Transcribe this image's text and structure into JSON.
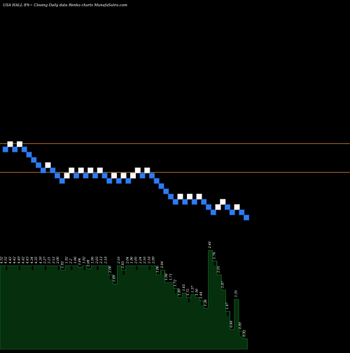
{
  "header": {
    "text": "USA HALL  8%~  Closing Daily data  Renko  charts MunafaSutra.com"
  },
  "colors": {
    "background": "#000000",
    "up_brick": "#ffffff",
    "down_brick": "#2f7cf0",
    "down_brick_border": "#1a4fb8",
    "ref_line": "#a0671d",
    "volume_fill": "#062f0e",
    "volume_line": "#127a2b",
    "volume_tick": "#000000",
    "label": "#ffffff"
  },
  "chart_data": {
    "type": "renko",
    "bricks": [
      {
        "dir": "down",
        "level": 0
      },
      {
        "dir": "up",
        "level": 1
      },
      {
        "dir": "down",
        "level": 0
      },
      {
        "dir": "up",
        "level": 1
      },
      {
        "dir": "down",
        "level": 0
      },
      {
        "dir": "down",
        "level": -1
      },
      {
        "dir": "down",
        "level": -2
      },
      {
        "dir": "down",
        "level": -3
      },
      {
        "dir": "down",
        "level": -4
      },
      {
        "dir": "up",
        "level": -3
      },
      {
        "dir": "down",
        "level": -4
      },
      {
        "dir": "down",
        "level": -5
      },
      {
        "dir": "down",
        "level": -6
      },
      {
        "dir": "up",
        "level": -5
      },
      {
        "dir": "up",
        "level": -4
      },
      {
        "dir": "down",
        "level": -5
      },
      {
        "dir": "up",
        "level": -4
      },
      {
        "dir": "down",
        "level": -5
      },
      {
        "dir": "up",
        "level": -4
      },
      {
        "dir": "down",
        "level": -5
      },
      {
        "dir": "up",
        "level": -4
      },
      {
        "dir": "down",
        "level": -5
      },
      {
        "dir": "down",
        "level": -6
      },
      {
        "dir": "up",
        "level": -5
      },
      {
        "dir": "down",
        "level": -6
      },
      {
        "dir": "up",
        "level": -5
      },
      {
        "dir": "down",
        "level": -6
      },
      {
        "dir": "up",
        "level": -5
      },
      {
        "dir": "up",
        "level": -4
      },
      {
        "dir": "down",
        "level": -5
      },
      {
        "dir": "up",
        "level": -4
      },
      {
        "dir": "down",
        "level": -5
      },
      {
        "dir": "down",
        "level": -6
      },
      {
        "dir": "down",
        "level": -7
      },
      {
        "dir": "down",
        "level": -8
      },
      {
        "dir": "down",
        "level": -9
      },
      {
        "dir": "down",
        "level": -10
      },
      {
        "dir": "up",
        "level": -9
      },
      {
        "dir": "down",
        "level": -10
      },
      {
        "dir": "up",
        "level": -9
      },
      {
        "dir": "down",
        "level": -10
      },
      {
        "dir": "up",
        "level": -9
      },
      {
        "dir": "down",
        "level": -10
      },
      {
        "dir": "down",
        "level": -11
      },
      {
        "dir": "down",
        "level": -12
      },
      {
        "dir": "up",
        "level": -11
      },
      {
        "dir": "up",
        "level": -10
      },
      {
        "dir": "down",
        "level": -11
      },
      {
        "dir": "down",
        "level": -12
      },
      {
        "dir": "up",
        "level": -11
      },
      {
        "dir": "down",
        "level": -12
      },
      {
        "dir": "down",
        "level": -13
      }
    ],
    "reference_lines": [
      "upper",
      "lower"
    ],
    "volume_labels": [
      "4.52",
      "4.52",
      "4.42",
      "4.42",
      "4.49",
      "4.42",
      "4.43",
      "4.34",
      "4.35",
      "4.39",
      "2.27",
      "2.21",
      "2.12",
      "2.06",
      "1.92",
      "1.92",
      "2.2",
      "1.96",
      "1.84",
      "1.92",
      "2.08",
      "1.96",
      "2.03",
      "2.13",
      "2.18",
      "2.08",
      "1.89",
      "2.16",
      "1.93",
      "2.04",
      "1.96",
      "2.05",
      "2.24",
      "2.16",
      "2.18",
      "2.09",
      "1.86",
      "2.04",
      "1.98",
      "1.71",
      "1.72",
      "1.89",
      "1.65",
      "1.75",
      "1.37",
      "1.56",
      "1.44",
      "1.36",
      "2.40",
      "1.76",
      "2.01",
      "1.87",
      "1.47",
      "0.98",
      "1.35",
      "0.99",
      "0.92"
    ],
    "volume_levels": [
      0.55,
      0.55,
      0.55,
      0.55,
      0.55,
      0.55,
      0.55,
      0.55,
      0.55,
      0.55,
      0.55,
      0.55,
      0.55,
      0.55,
      0.52,
      0.55,
      0.55,
      0.55,
      0.54,
      0.55,
      0.53,
      0.55,
      0.55,
      0.55,
      0.55,
      0.49,
      0.43,
      0.55,
      0.52,
      0.55,
      0.55,
      0.55,
      0.55,
      0.55,
      0.55,
      0.55,
      0.49,
      0.52,
      0.44,
      0.44,
      0.4,
      0.34,
      0.37,
      0.34,
      0.36,
      0.34,
      0.32,
      0.27,
      0.65,
      0.58,
      0.49,
      0.39,
      0.25,
      0.13,
      0.33,
      0.12,
      0.07
    ]
  }
}
